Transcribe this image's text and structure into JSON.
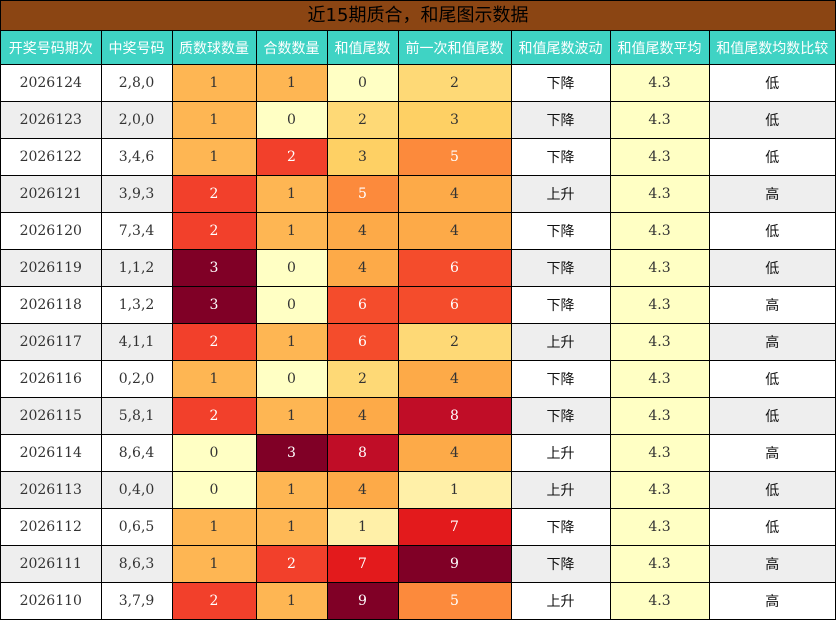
{
  "title": "近15期质合，和尾图示数据",
  "headers": [
    "开奖号码期次",
    "中奖号码",
    "质数球数量",
    "合数数量",
    "和值尾数",
    "前一次和值尾数",
    "和值尾数波动",
    "和值尾数平均",
    "和值尾数均数比较"
  ],
  "rows": [
    {
      "period": "2026124",
      "numbers": "2,8,0",
      "primes": 1,
      "composites": 1,
      "tail": 0,
      "prev_tail": 2,
      "trend": "下降",
      "avg": "4.3",
      "compare": "低"
    },
    {
      "period": "2026123",
      "numbers": "2,0,0",
      "primes": 1,
      "composites": 0,
      "tail": 2,
      "prev_tail": 3,
      "trend": "下降",
      "avg": "4.3",
      "compare": "低"
    },
    {
      "period": "2026122",
      "numbers": "3,4,6",
      "primes": 1,
      "composites": 2,
      "tail": 3,
      "prev_tail": 5,
      "trend": "下降",
      "avg": "4.3",
      "compare": "低"
    },
    {
      "period": "2026121",
      "numbers": "3,9,3",
      "primes": 2,
      "composites": 1,
      "tail": 5,
      "prev_tail": 4,
      "trend": "上升",
      "avg": "4.3",
      "compare": "高"
    },
    {
      "period": "2026120",
      "numbers": "7,3,4",
      "primes": 2,
      "composites": 1,
      "tail": 4,
      "prev_tail": 4,
      "trend": "下降",
      "avg": "4.3",
      "compare": "低"
    },
    {
      "period": "2026119",
      "numbers": "1,1,2",
      "primes": 3,
      "composites": 0,
      "tail": 4,
      "prev_tail": 6,
      "trend": "下降",
      "avg": "4.3",
      "compare": "低"
    },
    {
      "period": "2026118",
      "numbers": "1,3,2",
      "primes": 3,
      "composites": 0,
      "tail": 6,
      "prev_tail": 6,
      "trend": "下降",
      "avg": "4.3",
      "compare": "高"
    },
    {
      "period": "2026117",
      "numbers": "4,1,1",
      "primes": 2,
      "composites": 1,
      "tail": 6,
      "prev_tail": 2,
      "trend": "上升",
      "avg": "4.3",
      "compare": "高"
    },
    {
      "period": "2026116",
      "numbers": "0,2,0",
      "primes": 1,
      "composites": 0,
      "tail": 2,
      "prev_tail": 4,
      "trend": "下降",
      "avg": "4.3",
      "compare": "低"
    },
    {
      "period": "2026115",
      "numbers": "5,8,1",
      "primes": 2,
      "composites": 1,
      "tail": 4,
      "prev_tail": 8,
      "trend": "下降",
      "avg": "4.3",
      "compare": "低"
    },
    {
      "period": "2026114",
      "numbers": "8,6,4",
      "primes": 0,
      "composites": 3,
      "tail": 8,
      "prev_tail": 4,
      "trend": "上升",
      "avg": "4.3",
      "compare": "高"
    },
    {
      "period": "2026113",
      "numbers": "0,4,0",
      "primes": 0,
      "composites": 1,
      "tail": 4,
      "prev_tail": 1,
      "trend": "上升",
      "avg": "4.3",
      "compare": "低"
    },
    {
      "period": "2026112",
      "numbers": "0,6,5",
      "primes": 1,
      "composites": 1,
      "tail": 1,
      "prev_tail": 7,
      "trend": "下降",
      "avg": "4.3",
      "compare": "低"
    },
    {
      "period": "2026111",
      "numbers": "8,6,3",
      "primes": 1,
      "composites": 2,
      "tail": 7,
      "prev_tail": 9,
      "trend": "下降",
      "avg": "4.3",
      "compare": "高"
    },
    {
      "period": "2026110",
      "numbers": "3,7,9",
      "primes": 2,
      "composites": 1,
      "tail": 9,
      "prev_tail": 5,
      "trend": "上升",
      "avg": "4.3",
      "compare": "高"
    }
  ],
  "colors": {
    "title_bg": "#8b4513",
    "header_bg": "#3fd3c4",
    "avg_bg": "#ffffc4",
    "alt_row_bg": "#eeeeee",
    "count_scale": {
      "0": "#ffffc4",
      "1": "#feb653",
      "2": "#f2402b",
      "3": "#800026"
    },
    "tail_scale": {
      "0": "#ffffc4",
      "1": "#fff0a8",
      "2": "#fed976",
      "3": "#fed064",
      "4": "#fdaa48",
      "5": "#fc8a3c",
      "6": "#f44c2c",
      "7": "#e31a1c",
      "8": "#c00d27",
      "9": "#800026"
    },
    "dark_text_max": {
      "count": 1,
      "tail": 4
    }
  }
}
